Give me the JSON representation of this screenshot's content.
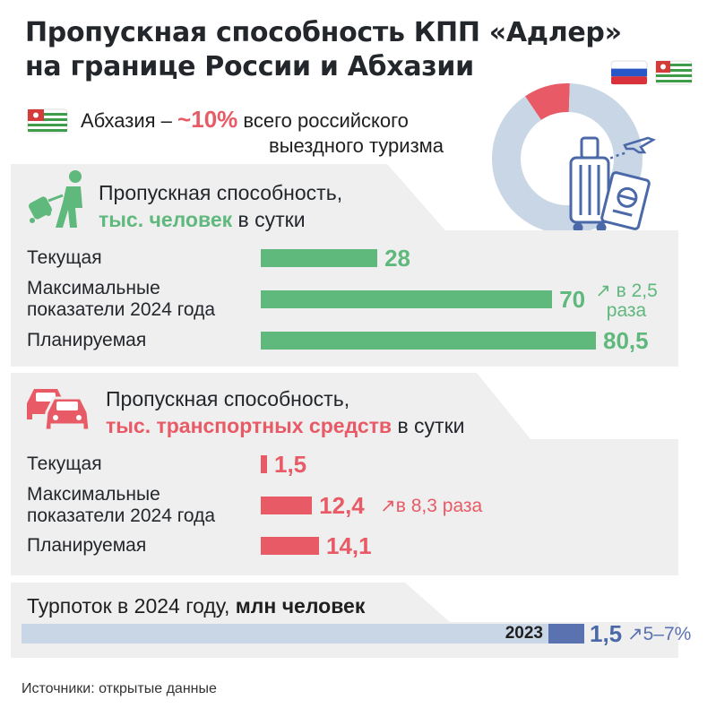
{
  "header": {
    "title_line1": "Пропускная способность КПП «Адлер»",
    "title_line2": "на границе России и Абхазии"
  },
  "share": {
    "prefix": "Абхазия –",
    "value": "~10%",
    "suffix_line1": "всего российского",
    "suffix_line2": "выездного туризма"
  },
  "colors": {
    "green": "#5fb87c",
    "red": "#e85a66",
    "blue_light": "#c9d6e6",
    "blue_dark": "#5a73b0",
    "panel": "#efefef"
  },
  "icons": [
    "abkhazia-flag-icon",
    "russia-flag-icon",
    "suitcase-icon",
    "passport-icon",
    "airplane-icon",
    "traveler-icon",
    "cars-icon"
  ],
  "people_section": {
    "title_line1": "Пропускная способность,",
    "title_unit": "тыс. человек",
    "title_rest": "в сутки"
  },
  "vehicles_section": {
    "title_line1": "Пропускная способность,",
    "title_unit": "тыс. транспортных средств",
    "title_rest": "в сутки"
  },
  "tourists_section": {
    "title_main": "Турпоток в 2024 году,",
    "title_bold": "млн человек"
  },
  "chart_data": [
    {
      "type": "pie",
      "values": [
        10,
        90
      ],
      "categories": [
        "Абхазия",
        ""
      ]
    },
    {
      "type": "bar",
      "categories": [
        "Текущая",
        "Максимальные показатели 2024 года",
        "Планируемая"
      ],
      "category_lines": [
        [
          "Текущая"
        ],
        [
          "Максимальные",
          "показатели 2024 года"
        ],
        [
          "Планируемая"
        ]
      ],
      "values": [
        28,
        70,
        80.5
      ],
      "value_labels": [
        "28",
        "70",
        "80,5"
      ],
      "annotation_line1": "↗ в 2,5",
      "annotation_line2": "раза"
    },
    {
      "type": "bar",
      "categories": [
        "Текущая",
        "Максимальные показатели 2024 года",
        "Планируемая"
      ],
      "category_lines": [
        [
          "Текущая"
        ],
        [
          "Максимальные",
          "показатели 2024 года"
        ],
        [
          "Планируемая"
        ]
      ],
      "values": [
        1.5,
        12.4,
        14.1
      ],
      "value_labels": [
        "1,5",
        "12,4",
        "14,1"
      ],
      "annotation": "↗в 8,3 раза"
    },
    {
      "type": "bar",
      "series": [
        {
          "name": "2023",
          "values": [
            1.5
          ]
        }
      ],
      "value_label": "1,5",
      "annotation": "↗5–7%"
    }
  ],
  "footer": {
    "source": "Источники: открытые данные"
  }
}
